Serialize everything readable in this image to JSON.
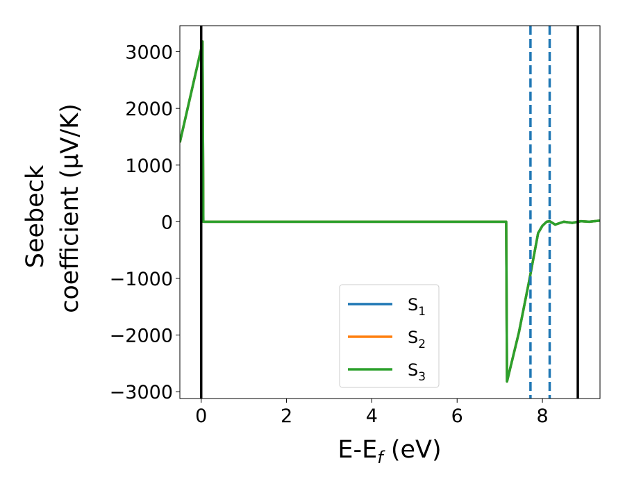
{
  "chart_data": {
    "type": "line",
    "xlabel_main": "E-E",
    "xlabel_sub": "f",
    "xlabel_unit": " (eV)",
    "ylabel_line1": "Seebeck",
    "ylabel_line2": "coefficient  (μV/K)",
    "xlim": [
      -0.5,
      9.35
    ],
    "ylim": [
      -3120,
      3460
    ],
    "xticks": [
      0,
      2,
      4,
      6,
      8
    ],
    "xtick_labels": [
      "0",
      "2",
      "4",
      "6",
      "8"
    ],
    "yticks": [
      3000,
      2000,
      1000,
      0,
      -1000,
      -2000,
      -3000
    ],
    "ytick_labels": [
      "3000",
      "2000",
      "1000",
      "0",
      "−1000",
      "−2000",
      "−3000"
    ],
    "legend_position": "lower-center",
    "series": [
      {
        "name": "S",
        "subscript": "1",
        "color": "#1f77b4",
        "x": [
          -0.5,
          0.0,
          0.03,
          0.05,
          7.15,
          7.17,
          7.45,
          7.7,
          7.9,
          8.0,
          8.1,
          8.17,
          8.3,
          8.5,
          8.7,
          8.9,
          9.1,
          9.35
        ],
        "y": [
          1400,
          3050,
          3180,
          0,
          0,
          -2820,
          -1950,
          -1000,
          -200,
          -70,
          0,
          10,
          -50,
          0,
          -20,
          10,
          0,
          20
        ]
      },
      {
        "name": "S",
        "subscript": "2",
        "color": "#ff7f0e",
        "x": [
          -0.5,
          0.0,
          0.03,
          0.05,
          7.15,
          7.17,
          7.45,
          7.7,
          7.9,
          8.0,
          8.1,
          8.17,
          8.3,
          8.5,
          8.7,
          8.9,
          9.1,
          9.35
        ],
        "y": [
          1400,
          3050,
          3180,
          0,
          0,
          -2820,
          -1950,
          -1000,
          -200,
          -70,
          0,
          10,
          -50,
          0,
          -20,
          10,
          0,
          20
        ]
      },
      {
        "name": "S",
        "subscript": "3",
        "color": "#2ca02c",
        "x": [
          -0.5,
          0.0,
          0.03,
          0.05,
          7.15,
          7.17,
          7.45,
          7.7,
          7.9,
          8.0,
          8.1,
          8.17,
          8.3,
          8.5,
          8.7,
          8.9,
          9.1,
          9.35
        ],
        "y": [
          1400,
          3050,
          3180,
          0,
          0,
          -2820,
          -1950,
          -1000,
          -200,
          -70,
          0,
          10,
          -50,
          0,
          -20,
          10,
          0,
          20
        ]
      }
    ],
    "vlines": [
      {
        "x": 0.0,
        "color": "#000000",
        "style": "solid"
      },
      {
        "x": 8.83,
        "color": "#000000",
        "style": "solid"
      },
      {
        "x": 7.72,
        "color": "#1f77b4",
        "style": "dashed"
      },
      {
        "x": 8.17,
        "color": "#1f77b4",
        "style": "dashed"
      }
    ],
    "grid": false
  }
}
